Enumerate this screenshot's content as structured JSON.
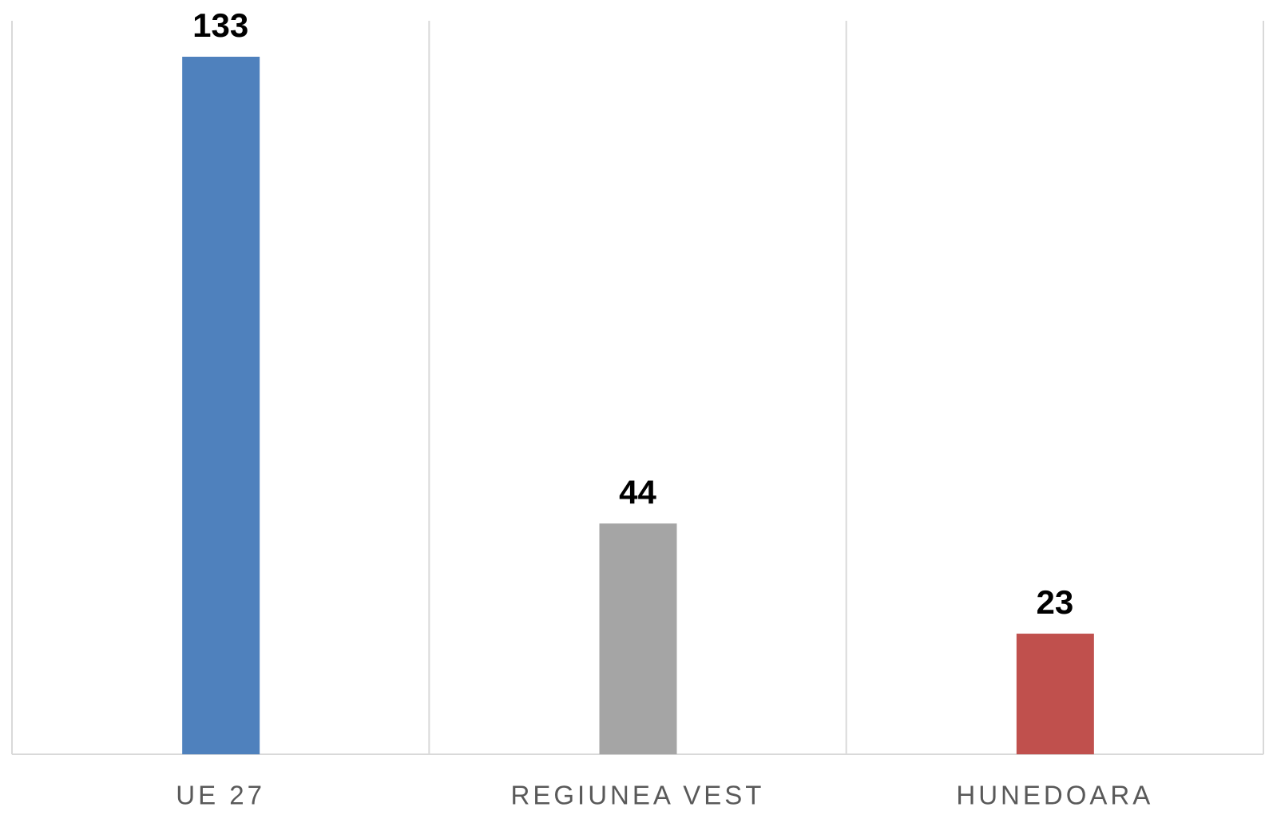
{
  "chart_data": {
    "type": "bar",
    "categories": [
      "UE 27",
      "REGIUNEA VEST",
      "HUNEDOARA"
    ],
    "values": [
      133,
      44,
      23
    ],
    "colors": [
      "#4f81bd",
      "#a5a5a5",
      "#c0504d"
    ]
  }
}
